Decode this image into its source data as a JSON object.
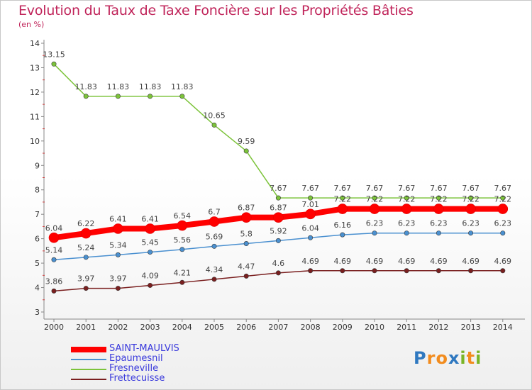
{
  "title": "Evolution du Taux de Taxe Foncière sur les Propriétés Bâties",
  "subtitle": "(en %)",
  "logo": {
    "letters": [
      "P",
      "r",
      "o",
      "x",
      "i",
      "t",
      "i"
    ],
    "colors": [
      "#2f78c0",
      "#f28c1e",
      "#f28c1e",
      "#2f78c0",
      "#7ab527",
      "#f28c1e",
      "#7ab527"
    ]
  },
  "chart_data": {
    "type": "line",
    "x": [
      2000,
      2001,
      2002,
      2003,
      2004,
      2005,
      2006,
      2007,
      2008,
      2009,
      2010,
      2011,
      2012,
      2013,
      2014
    ],
    "ylim": [
      3,
      14
    ],
    "yticks": [
      3,
      4,
      5,
      6,
      7,
      8,
      9,
      10,
      11,
      12,
      13,
      14
    ],
    "grid": false,
    "legend_position": "bottom-left",
    "series": [
      {
        "name": "SAINT-MAULVIS",
        "color": "#ff0000",
        "width": 8,
        "values": [
          6.04,
          6.22,
          6.41,
          6.41,
          6.54,
          6.7,
          6.87,
          6.87,
          7.01,
          7.22,
          7.22,
          7.22,
          7.22,
          7.22,
          7.22
        ],
        "labels": [
          "6.04",
          "6.22",
          "6.41",
          "6.41",
          "6.54",
          "6.7",
          "6.87",
          "6.87",
          "7.01",
          "7.22",
          "7.22",
          "7.22",
          "7.22",
          "7.22",
          "7.22"
        ]
      },
      {
        "name": "Epaumesnil",
        "color": "#4a90d0",
        "width": 1.5,
        "values": [
          5.14,
          5.24,
          5.34,
          5.45,
          5.56,
          5.69,
          5.8,
          5.92,
          6.04,
          6.16,
          6.23,
          6.23,
          6.23,
          6.23,
          6.23
        ],
        "labels": [
          "5.14",
          "5.24",
          "5.34",
          "5.45",
          "5.56",
          "5.69",
          "5.8",
          "5.92",
          "6.04",
          "6.16",
          "6.23",
          "6.23",
          "6.23",
          "6.23",
          "6.23"
        ]
      },
      {
        "name": "Fresneville",
        "color": "#7cc33a",
        "width": 1.5,
        "values": [
          13.15,
          11.83,
          11.83,
          11.83,
          11.83,
          10.65,
          9.59,
          7.67,
          7.67,
          7.67,
          7.67,
          7.67,
          7.67,
          7.67,
          7.67
        ],
        "labels": [
          "13.15",
          "11.83",
          "11.83",
          "11.83",
          "11.83",
          "10.65",
          "9.59",
          "7.67",
          "7.67",
          "7.67",
          "7.67",
          "7.67",
          "7.67",
          "7.67",
          "7.67"
        ]
      },
      {
        "name": "Frettecuisse",
        "color": "#7a1f1f",
        "width": 1.5,
        "values": [
          3.86,
          3.97,
          3.97,
          4.09,
          4.21,
          4.34,
          4.47,
          4.6,
          4.69,
          4.69,
          4.69,
          4.69,
          4.69,
          4.69,
          4.69
        ],
        "labels": [
          "3.86",
          "3.97",
          "3.97",
          "4.09",
          "4.21",
          "4.34",
          "4.47",
          "4.6",
          "4.69",
          "4.69",
          "4.69",
          "4.69",
          "4.69",
          "4.69",
          "4.69"
        ]
      }
    ]
  }
}
